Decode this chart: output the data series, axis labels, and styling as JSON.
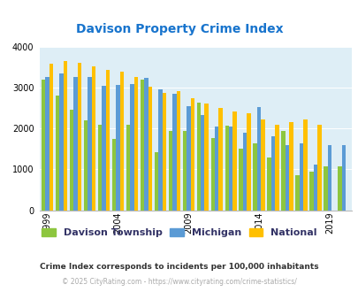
{
  "title": "Davison Property Crime Index",
  "title_color": "#1874cd",
  "years": [
    1999,
    2000,
    2001,
    2002,
    2003,
    2004,
    2005,
    2006,
    2007,
    2008,
    2009,
    2010,
    2011,
    2012,
    2013,
    2014,
    2015,
    2016,
    2017,
    2018,
    2019,
    2020
  ],
  "davison": [
    3200,
    2800,
    2450,
    2200,
    2100,
    1750,
    2100,
    3200,
    1420,
    1950,
    1950,
    2630,
    1760,
    2060,
    1510,
    1630,
    1300,
    1930,
    860,
    940,
    1080,
    1080
  ],
  "michigan": [
    3250,
    3350,
    3260,
    3250,
    3040,
    3060,
    3090,
    3230,
    2950,
    2840,
    2540,
    2330,
    2040,
    2050,
    1900,
    2520,
    1820,
    1590,
    1640,
    1110,
    1590,
    1590
  ],
  "national": [
    3590,
    3640,
    3610,
    3510,
    3440,
    3380,
    3250,
    3020,
    2870,
    2910,
    2750,
    2610,
    2500,
    2420,
    2370,
    2210,
    2090,
    2150,
    2210,
    2100,
    null,
    null
  ],
  "color_davison": "#8dc63f",
  "color_michigan": "#5b9bd5",
  "color_national": "#ffc000",
  "bg_color": "#deeef6",
  "ylim": [
    0,
    4000
  ],
  "yticks": [
    0,
    1000,
    2000,
    3000,
    4000
  ],
  "xtick_years": [
    1999,
    2004,
    2009,
    2014,
    2019
  ],
  "subtitle": "Crime Index corresponds to incidents per 100,000 inhabitants",
  "subtitle_color": "#333333",
  "footer": "© 2025 CityRating.com - https://www.cityrating.com/crime-statistics/",
  "footer_color": "#aaaaaa",
  "legend_labels": [
    "Davison Township",
    "Michigan",
    "National"
  ]
}
